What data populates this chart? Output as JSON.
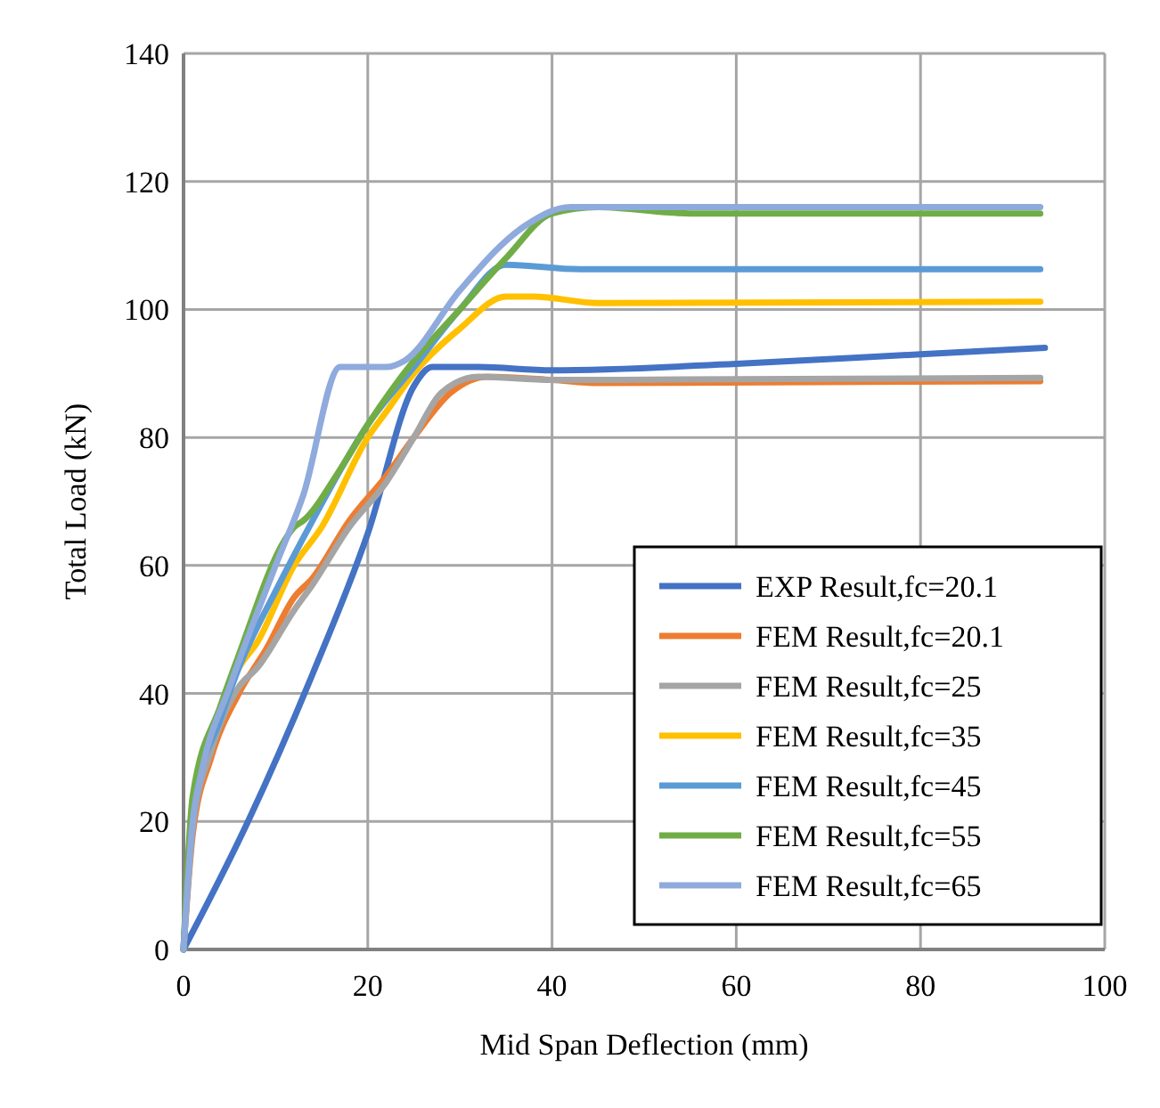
{
  "chart_data": {
    "type": "line",
    "xlabel": "Mid Span Deflection (mm)",
    "ylabel": "Total Load (kN)",
    "xlim": [
      0,
      100
    ],
    "xticks": [
      0,
      20,
      40,
      60,
      80,
      100
    ],
    "ylim": [
      0,
      140
    ],
    "yticks": [
      0,
      20,
      40,
      60,
      80,
      100,
      120,
      140
    ],
    "grid": true,
    "legend": "bottom right",
    "marker": "none",
    "line_style": "solid",
    "series": [
      {
        "name": "EXP Result,fc=20.1",
        "color": "#4472c4",
        "x": [
          0,
          7,
          14,
          20,
          25,
          27,
          32,
          40,
          60,
          80,
          93.5
        ],
        "values": [
          0,
          20,
          43,
          65,
          88,
          91,
          91,
          90.5,
          91.5,
          93,
          94
        ]
      },
      {
        "name": "FEM Result,fc=20.1",
        "color": "#ed7d31",
        "x": [
          0,
          1,
          3,
          6,
          9,
          12,
          14,
          18,
          22,
          25,
          29,
          33,
          40,
          45,
          93
        ],
        "values": [
          0,
          18,
          30,
          40,
          47,
          55,
          58,
          67,
          74,
          80,
          87,
          89.5,
          89,
          88.5,
          88.8
        ]
      },
      {
        "name": "FEM Result,fc=25",
        "color": "#a5a5a5",
        "x": [
          0,
          1,
          3,
          6,
          8,
          12,
          14,
          18,
          22,
          25,
          28,
          32,
          40,
          93
        ],
        "values": [
          0,
          19,
          31,
          41,
          44,
          53,
          57,
          66,
          73,
          80,
          87,
          89.5,
          89,
          89.3
        ]
      },
      {
        "name": "FEM Result,fc=35",
        "color": "#ffc000",
        "x": [
          3,
          6,
          8,
          12,
          15,
          20,
          22,
          25,
          30,
          35,
          38,
          45,
          93
        ],
        "values": [
          33,
          44,
          48,
          60,
          66,
          80,
          84,
          90,
          97,
          102,
          102,
          101,
          101.2
        ]
      },
      {
        "name": "FEM Result,fc=45",
        "color": "#5b9bd5",
        "x": [
          0,
          1,
          4,
          6,
          10,
          14,
          20,
          25,
          30,
          35,
          43,
          93
        ],
        "values": [
          0,
          22,
          36,
          44,
          56,
          67,
          82,
          91,
          100,
          107,
          106.3,
          106.3
        ]
      },
      {
        "name": "FEM Result,fc=55",
        "color": "#70ad47",
        "x": [
          0,
          1,
          4,
          6,
          11,
          12,
          13,
          17,
          20,
          25,
          30,
          35,
          40,
          45,
          55,
          93
        ],
        "values": [
          0,
          24,
          38,
          46,
          64,
          66,
          67,
          75,
          82,
          92,
          100,
          108,
          115,
          116,
          115,
          115
        ]
      },
      {
        "name": "FEM Result,fc=65",
        "color": "#8faadc",
        "x": [
          0,
          1,
          2,
          5,
          10,
          13,
          17,
          20,
          22,
          24,
          30,
          37,
          42,
          93
        ],
        "values": [
          0,
          20,
          28,
          41,
          60,
          71,
          91,
          91,
          91,
          92,
          103,
          113,
          116,
          116
        ]
      }
    ]
  }
}
